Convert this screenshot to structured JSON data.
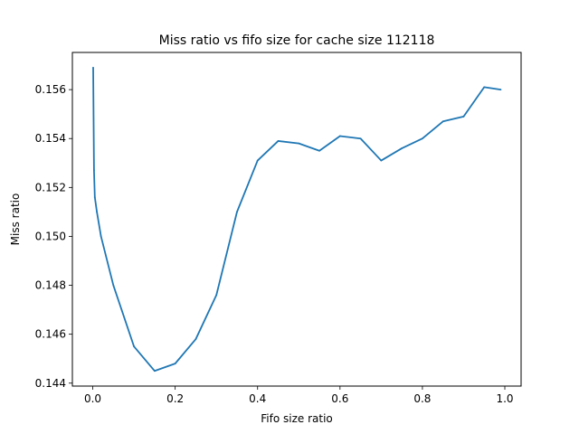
{
  "chart_data": {
    "type": "line",
    "title": "Miss ratio vs fifo size for cache size 112118",
    "xlabel": "Fifo size ratio",
    "ylabel": "Miss ratio",
    "xlim": [
      -0.0495,
      1.0395
    ],
    "ylim": [
      0.14388,
      0.15752
    ],
    "xticks": [
      0.0,
      0.2,
      0.4,
      0.6,
      0.8,
      1.0
    ],
    "xtick_labels": [
      "0.0",
      "0.2",
      "0.4",
      "0.6",
      "0.8",
      "1.0"
    ],
    "yticks": [
      0.144,
      0.146,
      0.148,
      0.15,
      0.152,
      0.154,
      0.156
    ],
    "ytick_labels": [
      "0.144",
      "0.146",
      "0.148",
      "0.150",
      "0.152",
      "0.154",
      "0.156"
    ],
    "grid": false,
    "series": [
      {
        "color": "#1f77b4",
        "x": [
          0.001,
          0.003,
          0.005,
          0.01,
          0.02,
          0.05,
          0.1,
          0.15,
          0.2,
          0.25,
          0.3,
          0.35,
          0.4,
          0.45,
          0.5,
          0.55,
          0.6,
          0.65,
          0.7,
          0.75,
          0.8,
          0.85,
          0.9,
          0.95,
          0.99
        ],
        "y": [
          0.1569,
          0.1527,
          0.1516,
          0.151,
          0.15,
          0.148,
          0.1455,
          0.1445,
          0.1448,
          0.1458,
          0.1476,
          0.151,
          0.1531,
          0.1539,
          0.1538,
          0.1535,
          0.1541,
          0.154,
          0.1531,
          0.1536,
          0.154,
          0.1547,
          0.1549,
          0.1561,
          0.156
        ]
      }
    ]
  }
}
